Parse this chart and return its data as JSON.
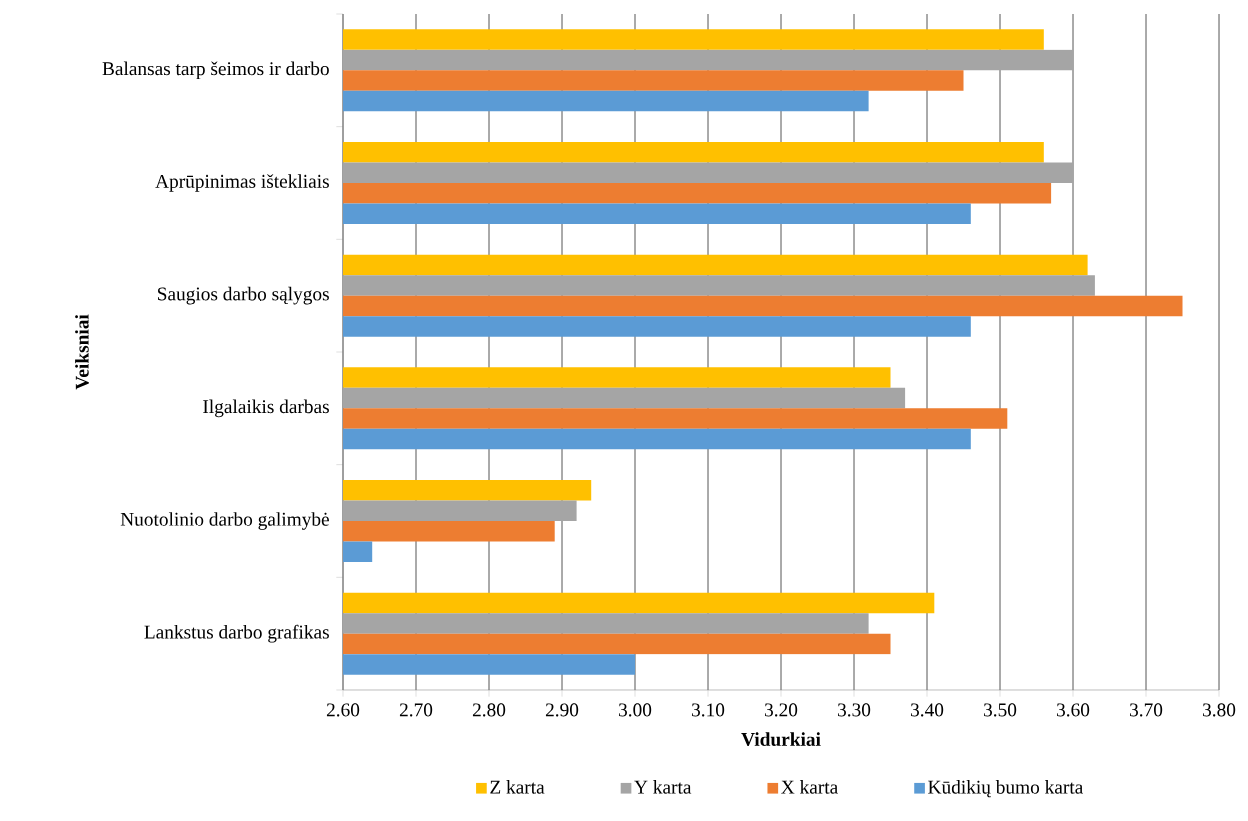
{
  "chart_data": {
    "type": "bar",
    "orientation": "horizontal",
    "xlabel": "Vidurkiai",
    "ylabel": "Veiksniai",
    "categories": [
      "Balansas tarp šeimos ir darbo",
      "Aprūpinimas ištekliais",
      "Saugios darbo sąlygos",
      "Ilgalaikis darbas",
      "Nuotolinio darbo galimybė",
      "Lankstus darbo grafikas"
    ],
    "series": [
      {
        "name": "Z karta",
        "color": "#ffc000",
        "values": [
          3.56,
          3.56,
          3.62,
          3.35,
          2.94,
          3.41
        ]
      },
      {
        "name": "Y karta",
        "color": "#a5a5a5",
        "values": [
          3.6,
          3.6,
          3.63,
          3.37,
          2.92,
          3.32
        ]
      },
      {
        "name": "X karta",
        "color": "#ed7d31",
        "values": [
          3.45,
          3.57,
          3.75,
          3.51,
          2.89,
          3.35
        ]
      },
      {
        "name": "Kūdikių bumo karta",
        "color": "#5b9bd5",
        "values": [
          3.32,
          3.46,
          3.46,
          3.46,
          2.64,
          3.0
        ]
      }
    ],
    "xlim": [
      2.6,
      3.8
    ],
    "xticks": [
      {
        "value": 2.6,
        "label": "2.60"
      },
      {
        "value": 2.7,
        "label": "2.70"
      },
      {
        "value": 2.8,
        "label": "2.80"
      },
      {
        "value": 2.9,
        "label": "2.90"
      },
      {
        "value": 3.0,
        "label": "3.00"
      },
      {
        "value": 3.1,
        "label": "3.10"
      },
      {
        "value": 3.2,
        "label": "3.20"
      },
      {
        "value": 3.3,
        "label": "3.30"
      },
      {
        "value": 3.4,
        "label": "3.40"
      },
      {
        "value": 3.5,
        "label": "3.50"
      },
      {
        "value": 3.6,
        "label": "3.60"
      },
      {
        "value": 3.7,
        "label": "3.70"
      },
      {
        "value": 3.8,
        "label": "3.80"
      }
    ],
    "grid": "x",
    "legend": "bottom"
  }
}
